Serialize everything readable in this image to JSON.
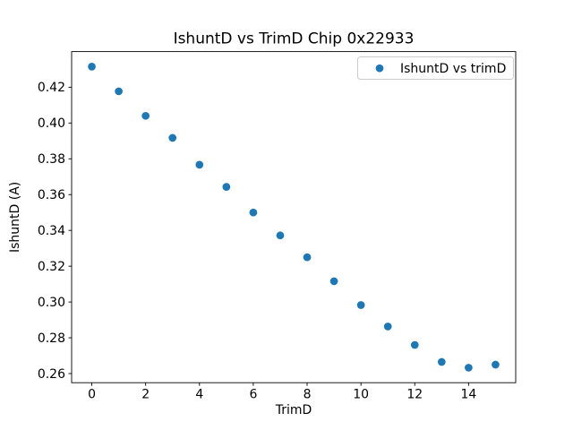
{
  "chart_data": {
    "type": "scatter",
    "title": "IshuntD vs TrimD Chip 0x22933",
    "xlabel": "TrimD",
    "ylabel": "IshuntD (A)",
    "legend": {
      "label": "IshuntD vs trimD",
      "position": "upper right"
    },
    "marker_color": "#1f77b4",
    "background_color": "#ffffff",
    "axis_color": "#000000",
    "legend_border_color": "#cccccc",
    "x": [
      0,
      1,
      2,
      3,
      4,
      5,
      6,
      7,
      8,
      9,
      10,
      11,
      12,
      13,
      14,
      15
    ],
    "y": [
      0.4315,
      0.4177,
      0.404,
      0.3917,
      0.3767,
      0.3643,
      0.35,
      0.3372,
      0.325,
      0.3116,
      0.2983,
      0.2863,
      0.276,
      0.2665,
      0.2633,
      0.265
    ],
    "xlim": [
      -0.75,
      15.75
    ],
    "ylim": [
      0.2549,
      0.4399
    ],
    "xticks": [
      0,
      2,
      4,
      6,
      8,
      10,
      12,
      14
    ],
    "yticks": [
      0.26,
      0.28,
      0.3,
      0.32,
      0.34,
      0.36,
      0.38,
      0.4,
      0.42
    ],
    "grid": false
  }
}
